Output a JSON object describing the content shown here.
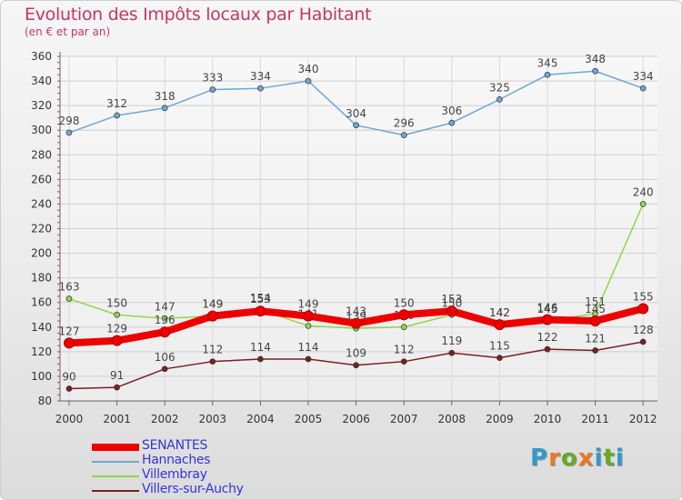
{
  "title": "Evolution des Impôts locaux par Habitant",
  "subtitle": "(en € et par an)",
  "logo": {
    "text": "Proxiti",
    "letters": [
      "P",
      "r",
      "o",
      "x",
      "i",
      "t",
      "i"
    ],
    "colors": [
      "#3399cc",
      "#ee7722",
      "#66aa22",
      "#ee7722",
      "#3399cc",
      "#66aa22",
      "#3399cc"
    ]
  },
  "chart_data": {
    "type": "line",
    "title": "Evolution des Impôts locaux par Habitant",
    "subtitle": "(en € et par an)",
    "xlabel": "",
    "ylabel": "",
    "ylim": [
      80,
      360
    ],
    "yticks": [
      80,
      100,
      120,
      140,
      160,
      180,
      200,
      220,
      240,
      260,
      280,
      300,
      320,
      340,
      360
    ],
    "x": [
      "2000",
      "2001",
      "2002",
      "2003",
      "2004",
      "2005",
      "2006",
      "2007",
      "2008",
      "2009",
      "2010",
      "2011",
      "2012"
    ],
    "series": [
      {
        "name": "Villers-sur-Auchy",
        "color": "#7a1f22",
        "width": 1.5,
        "values": [
          90,
          91,
          106,
          112,
          114,
          114,
          109,
          112,
          119,
          115,
          122,
          121,
          128
        ]
      },
      {
        "name": "Villembray",
        "color": "#8fd64a",
        "width": 1.5,
        "values": [
          163,
          150,
          147,
          149,
          154,
          141,
          139,
          140,
          150,
          142,
          145,
          151,
          240
        ]
      },
      {
        "name": "Hannaches",
        "color": "#6fa6d8",
        "width": 1.5,
        "values": [
          298,
          312,
          318,
          333,
          334,
          340,
          304,
          296,
          306,
          325,
          345,
          348,
          334
        ]
      },
      {
        "name": "SENANTES",
        "color": "#ee0000",
        "width": 8,
        "values": [
          127,
          129,
          136,
          149,
          153,
          149,
          143,
          150,
          153,
          142,
          146,
          145,
          155
        ]
      }
    ],
    "legend": [
      "SENANTES",
      "Hannaches",
      "Villembray",
      "Villers-sur-Auchy"
    ]
  }
}
